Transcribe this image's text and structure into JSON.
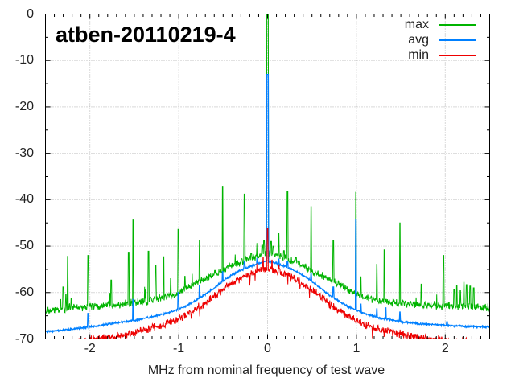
{
  "title": "atben-20110219-4",
  "legend": [
    {
      "label": "max",
      "color": "#00b400"
    },
    {
      "label": "avg",
      "color": "#0080ff"
    },
    {
      "label": "min",
      "color": "#ee0000"
    }
  ],
  "chart_data": {
    "type": "line",
    "title": "atben-20110219-4",
    "xlabel": "MHz from nominal frequency of test wave",
    "ylabel": "",
    "xlim": [
      -2.5,
      2.5
    ],
    "ylim": [
      -70,
      0
    ],
    "x_major_ticks": [
      -2,
      -1,
      0,
      1,
      2
    ],
    "x_minor_step": 0.1,
    "y_major_ticks": [
      0,
      -10,
      -20,
      -30,
      -40,
      -50,
      -60,
      -70
    ],
    "y_minor_step": 5,
    "grid": "dotted-at-major-ticks",
    "legend_position": "top-right-inside",
    "sample_step": 0.004,
    "units": "dB vs MHz offset",
    "series": [
      {
        "name": "max",
        "color": "#00b400",
        "width": 1,
        "noise_db": 1.0,
        "hair": [
          0.015,
          2.0
        ],
        "baseline": [
          [
            -2.5,
            -64.2
          ],
          [
            -2.25,
            -63.4
          ],
          [
            -2.0,
            -63.0
          ],
          [
            -1.75,
            -62.6
          ],
          [
            -1.5,
            -62.2
          ],
          [
            -1.35,
            -62.0
          ],
          [
            -1.25,
            -61.4
          ],
          [
            -1.1,
            -60.7
          ],
          [
            -1.0,
            -60.0
          ],
          [
            -0.9,
            -59.0
          ],
          [
            -0.8,
            -58.0
          ],
          [
            -0.7,
            -57.0
          ],
          [
            -0.6,
            -56.0
          ],
          [
            -0.5,
            -55.2
          ],
          [
            -0.4,
            -54.2
          ],
          [
            -0.3,
            -53.4
          ],
          [
            -0.2,
            -52.7
          ],
          [
            -0.15,
            -52.4
          ],
          [
            -0.1,
            -51.9
          ],
          [
            -0.05,
            -51.6
          ],
          [
            0.0,
            -51.4
          ],
          [
            0.05,
            -51.6
          ],
          [
            0.1,
            -51.9
          ],
          [
            0.15,
            -52.4
          ],
          [
            0.2,
            -52.7
          ],
          [
            0.3,
            -53.4
          ],
          [
            0.4,
            -54.3
          ],
          [
            0.5,
            -55.3
          ],
          [
            0.6,
            -56.3
          ],
          [
            0.7,
            -57.3
          ],
          [
            0.8,
            -58.3
          ],
          [
            0.9,
            -59.3
          ],
          [
            1.0,
            -60.2
          ],
          [
            1.1,
            -61.0
          ],
          [
            1.25,
            -61.8
          ],
          [
            1.5,
            -62.4
          ],
          [
            1.75,
            -62.7
          ],
          [
            2.0,
            -62.9
          ],
          [
            2.25,
            -63.0
          ],
          [
            2.5,
            -63.2
          ]
        ],
        "spikes": [
          [
            -2.33,
            -61.5
          ],
          [
            -2.3,
            -58.8
          ],
          [
            -2.27,
            -60.3
          ],
          [
            -2.25,
            -52.2
          ],
          [
            -2.21,
            -61.3
          ],
          [
            -2.02,
            -52.0
          ],
          [
            -1.76,
            -57.3
          ],
          [
            -1.565,
            -51.3
          ],
          [
            -1.515,
            -44.2
          ],
          [
            -1.34,
            -51.1
          ],
          [
            -1.26,
            -54.2
          ],
          [
            -1.17,
            -52.3
          ],
          [
            -1.09,
            -57.0
          ],
          [
            -1.005,
            -46.4
          ],
          [
            -0.93,
            -56.5
          ],
          [
            -0.765,
            -48.7
          ],
          [
            -0.7,
            -57.5
          ],
          [
            -0.505,
            -37.1
          ],
          [
            -0.26,
            -38.8
          ],
          [
            -0.185,
            -51.5
          ],
          [
            -0.117,
            -49.4
          ],
          [
            -0.06,
            -49.8
          ],
          [
            -0.04,
            -48.8
          ],
          [
            0.0,
            0.0,
            0.012
          ],
          [
            0.04,
            -49.0
          ],
          [
            0.065,
            -50.0
          ],
          [
            0.126,
            -47.3
          ],
          [
            0.185,
            -51.0
          ],
          [
            0.225,
            -38.3
          ],
          [
            0.32,
            -52.5
          ],
          [
            0.49,
            -41.5
          ],
          [
            0.74,
            -48.7
          ],
          [
            0.995,
            -38.4
          ],
          [
            1.05,
            -56.6
          ],
          [
            1.23,
            -53.9
          ],
          [
            1.315,
            -50.8
          ],
          [
            1.49,
            -45.0
          ],
          [
            1.73,
            -58.2
          ],
          [
            1.98,
            -52.0
          ],
          [
            2.1,
            -59.3
          ],
          [
            2.13,
            -58.5
          ],
          [
            2.17,
            -59.6
          ],
          [
            2.21,
            -57.8
          ],
          [
            2.24,
            -58.3
          ],
          [
            2.28,
            -58.6
          ],
          [
            2.32,
            -59.0
          ]
        ]
      },
      {
        "name": "avg",
        "color": "#0080ff",
        "width": 1.3,
        "noise_db": 0.25,
        "hair": [
          0.0,
          0.0
        ],
        "baseline": [
          [
            -2.5,
            -68.4
          ],
          [
            -2.25,
            -68.0
          ],
          [
            -2.0,
            -67.4
          ],
          [
            -1.75,
            -66.7
          ],
          [
            -1.5,
            -66.0
          ],
          [
            -1.25,
            -65.0
          ],
          [
            -1.1,
            -64.3
          ],
          [
            -1.0,
            -63.6
          ],
          [
            -0.9,
            -62.7
          ],
          [
            -0.8,
            -61.6
          ],
          [
            -0.7,
            -60.4
          ],
          [
            -0.6,
            -59.0
          ],
          [
            -0.5,
            -57.5
          ],
          [
            -0.4,
            -56.2
          ],
          [
            -0.3,
            -55.2
          ],
          [
            -0.2,
            -54.4
          ],
          [
            -0.15,
            -54.1
          ],
          [
            -0.1,
            -53.7
          ],
          [
            -0.05,
            -53.4
          ],
          [
            0.0,
            -53.3
          ],
          [
            0.05,
            -53.4
          ],
          [
            0.1,
            -53.7
          ],
          [
            0.15,
            -54.1
          ],
          [
            0.2,
            -54.4
          ],
          [
            0.3,
            -55.2
          ],
          [
            0.4,
            -56.3
          ],
          [
            0.5,
            -57.6
          ],
          [
            0.6,
            -59.1
          ],
          [
            0.7,
            -60.6
          ],
          [
            0.8,
            -61.8
          ],
          [
            0.9,
            -62.9
          ],
          [
            1.0,
            -63.8
          ],
          [
            1.1,
            -64.6
          ],
          [
            1.25,
            -65.4
          ],
          [
            1.5,
            -66.3
          ],
          [
            1.75,
            -66.8
          ],
          [
            2.0,
            -67.1
          ],
          [
            2.25,
            -67.3
          ],
          [
            2.5,
            -67.4
          ]
        ],
        "spikes": [
          [
            -2.02,
            -64.5
          ],
          [
            -1.515,
            -61.5
          ],
          [
            -1.005,
            -60.0
          ],
          [
            -0.765,
            -58.5
          ],
          [
            -0.505,
            -55.5
          ],
          [
            -0.26,
            -53.2
          ],
          [
            -0.117,
            -52.6
          ],
          [
            0.0,
            -13.0,
            0.012
          ],
          [
            0.126,
            -52.8
          ],
          [
            0.225,
            -53.3
          ],
          [
            0.49,
            -55.8
          ],
          [
            0.74,
            -58.8
          ],
          [
            0.995,
            -44.2
          ],
          [
            1.05,
            -62.5
          ],
          [
            1.23,
            -63.5
          ],
          [
            1.33,
            -63.3
          ],
          [
            1.49,
            -64.2
          ],
          [
            2.02,
            -66.3
          ]
        ]
      },
      {
        "name": "min",
        "color": "#ee0000",
        "width": 1,
        "noise_db": 1.0,
        "hair": [
          0.012,
          -1.6
        ],
        "baseline": [
          [
            -2.5,
            -71.6
          ],
          [
            -2.25,
            -70.8
          ],
          [
            -2.0,
            -70.2
          ],
          [
            -1.75,
            -69.6
          ],
          [
            -1.5,
            -68.6
          ],
          [
            -1.25,
            -67.4
          ],
          [
            -1.1,
            -66.4
          ],
          [
            -1.0,
            -65.6
          ],
          [
            -0.9,
            -64.6
          ],
          [
            -0.8,
            -63.5
          ],
          [
            -0.7,
            -62.2
          ],
          [
            -0.6,
            -60.8
          ],
          [
            -0.5,
            -59.3
          ],
          [
            -0.4,
            -58.0
          ],
          [
            -0.3,
            -56.9
          ],
          [
            -0.2,
            -56.1
          ],
          [
            -0.15,
            -55.7
          ],
          [
            -0.1,
            -55.4
          ],
          [
            -0.05,
            -55.1
          ],
          [
            0.0,
            -55.0
          ],
          [
            0.05,
            -55.1
          ],
          [
            0.1,
            -55.4
          ],
          [
            0.15,
            -55.7
          ],
          [
            0.2,
            -56.1
          ],
          [
            0.3,
            -57.0
          ],
          [
            0.4,
            -58.2
          ],
          [
            0.5,
            -59.5
          ],
          [
            0.6,
            -61.0
          ],
          [
            0.7,
            -62.5
          ],
          [
            0.8,
            -63.8
          ],
          [
            0.9,
            -65.0
          ],
          [
            1.0,
            -66.0
          ],
          [
            1.1,
            -66.9
          ],
          [
            1.25,
            -67.8
          ],
          [
            1.5,
            -68.9
          ],
          [
            1.75,
            -69.7
          ],
          [
            2.0,
            -70.3
          ],
          [
            2.25,
            -70.6
          ],
          [
            2.5,
            -70.9
          ]
        ],
        "spikes": [
          [
            -0.117,
            -53.8
          ],
          [
            -0.05,
            -52.5
          ],
          [
            0.0,
            -46.2,
            0.008
          ],
          [
            0.05,
            -53.0
          ],
          [
            0.126,
            -54.0
          ]
        ]
      }
    ]
  }
}
